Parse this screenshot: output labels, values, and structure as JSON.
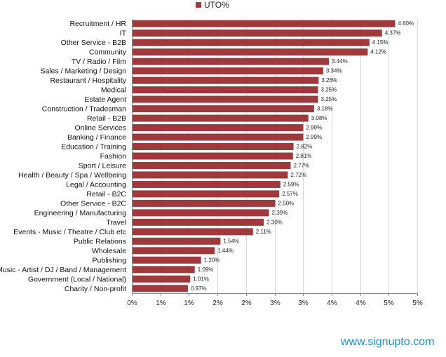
{
  "legend": {
    "label": "UTO%",
    "color": "#a0393b"
  },
  "watermark": "www.signupto.com",
  "chart_data": {
    "type": "bar",
    "orientation": "horizontal",
    "series": [
      {
        "name": "UTO%",
        "color": "#a0393b",
        "values": [
          4.6,
          4.37,
          4.15,
          4.12,
          3.44,
          3.34,
          3.26,
          3.25,
          3.25,
          3.18,
          3.08,
          2.99,
          2.99,
          2.82,
          2.81,
          2.77,
          2.72,
          2.59,
          2.57,
          2.5,
          2.39,
          2.3,
          2.11,
          1.54,
          1.44,
          1.2,
          1.09,
          1.01,
          0.97
        ]
      }
    ],
    "categories": [
      "Recruitment / HR",
      "IT",
      "Other Service - B2B",
      "Community",
      "TV / Radio / Film",
      "Sales / Marketing / Design",
      "Restaurant / Hospitality",
      "Medical",
      "Estate Agent",
      "Construction / Tradesman",
      "Retail - B2B",
      "Online Services",
      "Banking / Finance",
      "Education / Training",
      "Fashion",
      "Sport / Leisure",
      "Health / Beauty / Spa / Wellbeing",
      "Legal / Accounting",
      "Retail - B2C",
      "Other Service - B2C",
      "Engineering / Manufacturing",
      "Travel",
      "Events - Music / Theatre / Club etc",
      "Public Relations",
      "Wholesale",
      "Publishing",
      "Music - Artist / DJ / Band / Management",
      "Government (Local / National)",
      "Charity / Non-profit"
    ],
    "data_labels": [
      "4.60%",
      "4.37%",
      "4.15%",
      "4.12%",
      "3.44%",
      "3.34%",
      "3.26%",
      "3.25%",
      "3.25%",
      "3.18%",
      "3.08%",
      "2.99%",
      "2.99%",
      "2.82%",
      "2.81%",
      "2.77%",
      "2.72%",
      "2.59%",
      "2.57%",
      "2.50%",
      "2.39%",
      "2.30%",
      "2.11%",
      "1.54%",
      "1.44%",
      "1.20%",
      "1.09%",
      "1.01%",
      "0.97%"
    ],
    "xlim": [
      0,
      5
    ],
    "x_ticks": [
      0,
      0.5,
      1,
      1.5,
      2,
      2.5,
      3,
      3.5,
      4,
      4.5,
      5
    ],
    "x_tick_labels": [
      "0%",
      "1%",
      "1%",
      "2%",
      "2%",
      "3%",
      "3%",
      "4%",
      "4%",
      "5%",
      "5%"
    ],
    "grid": true,
    "legend_position": "top"
  }
}
